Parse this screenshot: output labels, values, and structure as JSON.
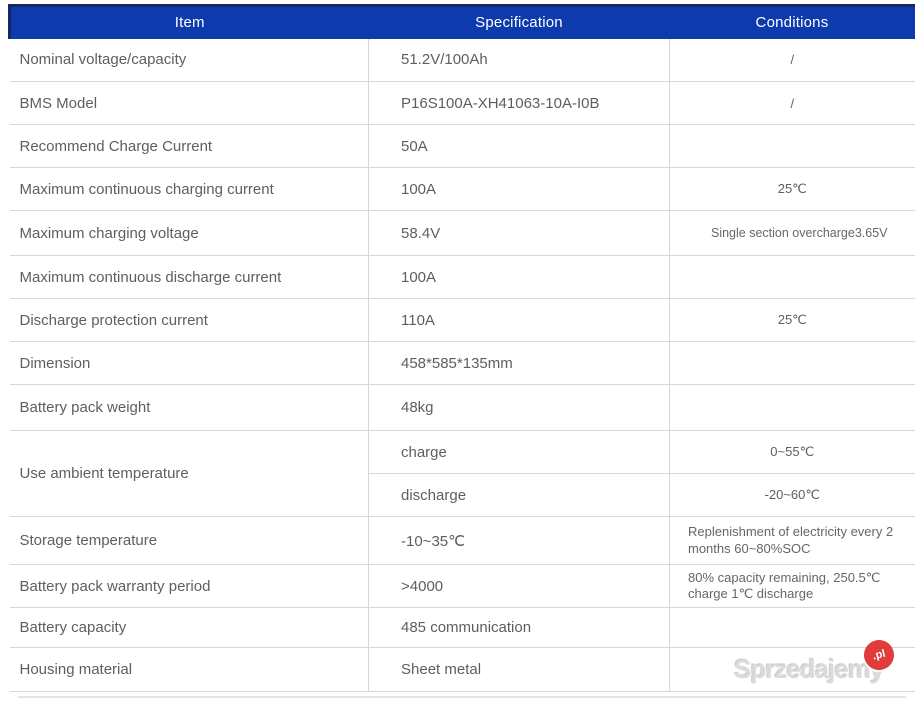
{
  "colors": {
    "header_bg": "#0d3bae",
    "header_border": "#14295f",
    "header_text": "#ffffff",
    "grid_line": "#d7d7d7",
    "body_text": "#5b5f64",
    "watermark_gray": "#dadada",
    "watermark_red": "#e03c3c"
  },
  "table": {
    "headers": {
      "item": "Item",
      "spec": "Specification",
      "cond": "Conditions"
    },
    "rows": [
      {
        "item": "Nominal voltage/capacity",
        "spec": "51.2V/100Ah",
        "cond": "/"
      },
      {
        "item": "BMS Model",
        "spec": "P16S100A-XH41063-10A-I0B",
        "cond": "/"
      },
      {
        "item": "Recommend Charge Current",
        "spec": "50A",
        "cond": ""
      },
      {
        "item": "Maximum continuous charging current",
        "spec": "100A",
        "cond": "25℃"
      },
      {
        "item": "Maximum charging voltage",
        "spec": "58.4V",
        "cond": "Single section overcharge3.65V"
      },
      {
        "item": "Maximum continuous discharge current",
        "spec": "100A",
        "cond": ""
      },
      {
        "item": "Discharge protection current",
        "spec": "110A",
        "cond": "25℃"
      },
      {
        "item": "Dimension",
        "spec": "458*585*135mm",
        "cond": ""
      },
      {
        "item": "Battery pack weight",
        "spec": "48kg",
        "cond": ""
      },
      {
        "item": "Use ambient temperature",
        "subrows": [
          {
            "spec": "charge",
            "cond": "0~55℃"
          },
          {
            "spec": "discharge",
            "cond": "-20~60℃"
          }
        ]
      },
      {
        "item": "Storage temperature",
        "spec": "-10~35℃",
        "cond": "Replenishment of electricity every 2 months 60~80%SOC"
      },
      {
        "item": "Battery pack warranty period",
        "spec": ">4000",
        "cond": "80% capacity remaining, 250.5℃ charge 1℃ discharge"
      },
      {
        "item": "Battery capacity",
        "spec": "485 communication",
        "cond": ""
      },
      {
        "item": "Housing material",
        "spec": "Sheet metal",
        "cond": ""
      }
    ]
  },
  "watermark": {
    "text": "Sprzedajemy",
    "badge": ".pl"
  }
}
